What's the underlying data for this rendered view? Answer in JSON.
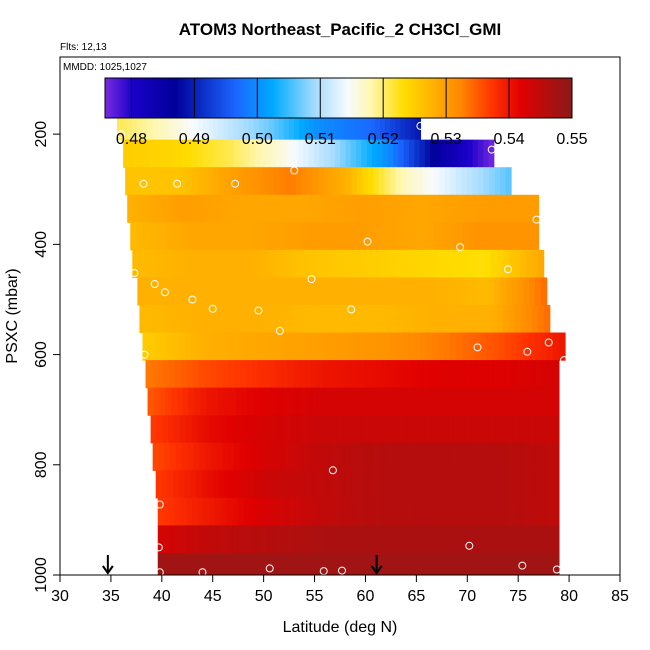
{
  "chart_data": {
    "type": "heatmap",
    "title": "ATOM3 Northeast_Pacific_2 CH3Cl_GMI",
    "flights_label": "Flts: 12,13",
    "dates_label": "MMDD: 1025,1027",
    "xlabel": "Latitude (deg N)",
    "ylabel": "PSXC (mbar)",
    "xlim": [
      30,
      85
    ],
    "ylim": [
      1000,
      60
    ],
    "x_ticks": [
      30,
      35,
      40,
      45,
      50,
      55,
      60,
      65,
      70,
      75,
      80,
      85
    ],
    "y_ticks": [
      200,
      400,
      600,
      800,
      1000
    ],
    "colorbar": {
      "range": [
        0.4758,
        0.55
      ],
      "ticks": [
        0.48,
        0.49,
        0.5,
        0.51,
        0.52,
        0.53,
        0.54,
        0.55
      ],
      "tick_labels": [
        "0.48",
        "0.49",
        "0.50",
        "0.51",
        "0.52",
        "0.53",
        "0.54",
        "0.55"
      ]
    },
    "rows": [
      {
        "p_top": 160,
        "p_bot": 210,
        "x0": 35.6,
        "x1": 65.4,
        "v": [
          0.521,
          0.517,
          0.512,
          0.507,
          0.5,
          0.497,
          0.489
        ]
      },
      {
        "p_top": 210,
        "p_bot": 260,
        "x0": 36.2,
        "x1": 72.6,
        "v": [
          0.525,
          0.524,
          0.521,
          0.516,
          0.509,
          0.5,
          0.485,
          0.476
        ]
      },
      {
        "p_top": 260,
        "p_bot": 310,
        "x0": 36.4,
        "x1": 74.3,
        "v": [
          0.526,
          0.526,
          0.53,
          0.533,
          0.528,
          0.518,
          0.512,
          0.506
        ]
      },
      {
        "p_top": 310,
        "p_bot": 360,
        "x0": 36.6,
        "x1": 77.0,
        "v": [
          0.528,
          0.53,
          0.529,
          0.529,
          0.53,
          0.529,
          0.53,
          0.53
        ]
      },
      {
        "p_top": 360,
        "p_bot": 410,
        "x0": 36.9,
        "x1": 77.0,
        "v": [
          0.527,
          0.529,
          0.529,
          0.53,
          0.53,
          0.529,
          0.531,
          0.531
        ]
      },
      {
        "p_top": 410,
        "p_bot": 460,
        "x0": 37.1,
        "x1": 77.5,
        "v": [
          0.527,
          0.528,
          0.528,
          0.526,
          0.525,
          0.524,
          0.523,
          0.529
        ]
      },
      {
        "p_top": 460,
        "p_bot": 510,
        "x0": 37.6,
        "x1": 77.8,
        "v": [
          0.528,
          0.528,
          0.528,
          0.528,
          0.528,
          0.528,
          0.527,
          0.534
        ]
      },
      {
        "p_top": 510,
        "p_bot": 560,
        "x0": 37.8,
        "x1": 78.1,
        "v": [
          0.527,
          0.528,
          0.528,
          0.527,
          0.527,
          0.528,
          0.528,
          0.534
        ]
      },
      {
        "p_top": 560,
        "p_bot": 610,
        "x0": 38.1,
        "x1": 79.6,
        "v": [
          0.525,
          0.528,
          0.529,
          0.53,
          0.531,
          0.533,
          0.536,
          0.54
        ]
      },
      {
        "p_top": 610,
        "p_bot": 660,
        "x0": 38.4,
        "x1": 79.0,
        "v": [
          0.533,
          0.536,
          0.538,
          0.54,
          0.541,
          0.542,
          0.542,
          0.543
        ]
      },
      {
        "p_top": 660,
        "p_bot": 710,
        "x0": 38.6,
        "x1": 79.0,
        "v": [
          0.535,
          0.54,
          0.542,
          0.543,
          0.543,
          0.543,
          0.543,
          0.543
        ]
      },
      {
        "p_top": 710,
        "p_bot": 760,
        "x0": 38.9,
        "x1": 79.0,
        "v": [
          0.537,
          0.541,
          0.543,
          0.544,
          0.544,
          0.544,
          0.544,
          0.544
        ]
      },
      {
        "p_top": 760,
        "p_bot": 810,
        "x0": 39.1,
        "x1": 79.0,
        "v": [
          0.536,
          0.54,
          0.543,
          0.545,
          0.546,
          0.546,
          0.546,
          0.545
        ]
      },
      {
        "p_top": 810,
        "p_bot": 860,
        "x0": 39.4,
        "x1": 79.0,
        "v": [
          0.537,
          0.541,
          0.544,
          0.545,
          0.546,
          0.546,
          0.546,
          0.545
        ]
      },
      {
        "p_top": 860,
        "p_bot": 910,
        "x0": 39.6,
        "x1": 79.0,
        "v": [
          0.537,
          0.54,
          0.543,
          0.545,
          0.546,
          0.546,
          0.546,
          0.545
        ]
      },
      {
        "p_top": 910,
        "p_bot": 960,
        "x0": 39.6,
        "x1": 79.0,
        "v": [
          0.543,
          0.545,
          0.546,
          0.547,
          0.547,
          0.547,
          0.547,
          0.547
        ]
      },
      {
        "p_top": 960,
        "p_bot": 1005,
        "x0": 39.6,
        "x1": 79.0,
        "v": [
          0.548,
          0.548,
          0.548,
          0.548,
          0.548,
          0.548,
          0.548,
          0.548
        ]
      }
    ],
    "points": [
      {
        "lat": 36.0,
        "p": 200
      },
      {
        "lat": 65.4,
        "p": 185
      },
      {
        "lat": 72.4,
        "p": 228
      },
      {
        "lat": 53.0,
        "p": 266
      },
      {
        "lat": 38.2,
        "p": 290
      },
      {
        "lat": 41.5,
        "p": 290
      },
      {
        "lat": 47.2,
        "p": 290
      },
      {
        "lat": 76.8,
        "p": 355
      },
      {
        "lat": 60.2,
        "p": 395
      },
      {
        "lat": 69.3,
        "p": 405
      },
      {
        "lat": 74.0,
        "p": 445
      },
      {
        "lat": 37.3,
        "p": 452
      },
      {
        "lat": 39.3,
        "p": 472
      },
      {
        "lat": 40.3,
        "p": 487
      },
      {
        "lat": 54.7,
        "p": 463
      },
      {
        "lat": 43.0,
        "p": 500
      },
      {
        "lat": 45.0,
        "p": 517
      },
      {
        "lat": 49.5,
        "p": 520
      },
      {
        "lat": 58.6,
        "p": 518
      },
      {
        "lat": 51.6,
        "p": 557
      },
      {
        "lat": 71.0,
        "p": 587
      },
      {
        "lat": 38.3,
        "p": 600
      },
      {
        "lat": 75.9,
        "p": 595
      },
      {
        "lat": 78.0,
        "p": 578
      },
      {
        "lat": 79.5,
        "p": 610
      },
      {
        "lat": 56.8,
        "p": 810
      },
      {
        "lat": 39.8,
        "p": 872
      },
      {
        "lat": 39.7,
        "p": 950
      },
      {
        "lat": 70.2,
        "p": 947
      },
      {
        "lat": 39.8,
        "p": 995
      },
      {
        "lat": 44.0,
        "p": 995
      },
      {
        "lat": 50.6,
        "p": 988
      },
      {
        "lat": 55.9,
        "p": 993
      },
      {
        "lat": 57.7,
        "p": 992
      },
      {
        "lat": 75.4,
        "p": 983
      },
      {
        "lat": 78.8,
        "p": 990
      }
    ],
    "arrows": [
      {
        "lat": 34.7
      },
      {
        "lat": 61.1
      }
    ]
  }
}
